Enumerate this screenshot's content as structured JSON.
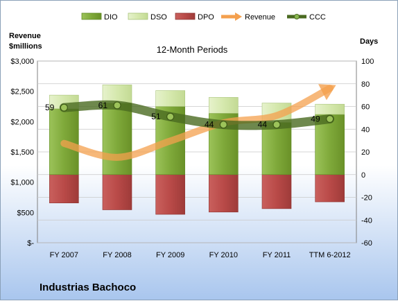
{
  "company": "Industrias Bachoco",
  "chart_data": {
    "type": "bar",
    "subtitle": "12-Month Periods",
    "categories": [
      "FY 2007",
      "FY 2008",
      "FY 2009",
      "FY 2010",
      "FY 2011",
      "TTM 6-2012"
    ],
    "left_axis": {
      "label_line1": "Revenue",
      "label_line2": "$millions",
      "ticks": [
        "$3,000",
        "$2,500",
        "$2,000",
        "$1,500",
        "$1,000",
        "$500",
        "$-"
      ],
      "range": [
        0,
        3000
      ]
    },
    "right_axis": {
      "label": "Days",
      "ticks": [
        "100",
        "80",
        "60",
        "40",
        "20",
        "0",
        "-20",
        "-40",
        "-60"
      ],
      "range": [
        -60,
        100
      ]
    },
    "legend": [
      "DIO",
      "DSO",
      "DPO",
      "Revenue",
      "CCC"
    ],
    "series": [
      {
        "name": "DIO",
        "type": "stacked-bar",
        "axis": "right",
        "color": "#7fa93a",
        "values": [
          58,
          63,
          60,
          54,
          46,
          53
        ]
      },
      {
        "name": "DSO",
        "type": "stacked-bar",
        "axis": "right",
        "color": "#d7e9b3",
        "values": [
          12,
          16,
          14,
          14,
          17,
          9
        ]
      },
      {
        "name": "DPO",
        "type": "stacked-bar",
        "axis": "right",
        "color": "#b94a48",
        "values": [
          -25,
          -31,
          -35,
          -33,
          -30,
          -24
        ]
      },
      {
        "name": "Revenue",
        "type": "line",
        "axis": "left",
        "color": "#f4a04e",
        "values": [
          1640,
          1410,
          1680,
          1980,
          2100,
          2550
        ]
      },
      {
        "name": "CCC",
        "type": "line",
        "axis": "right",
        "color": "#4a6a20",
        "values": [
          59,
          61,
          51,
          44,
          44,
          49
        ]
      }
    ],
    "data_labels": [
      "59",
      "61",
      "51",
      "44",
      "44",
      "49"
    ]
  }
}
